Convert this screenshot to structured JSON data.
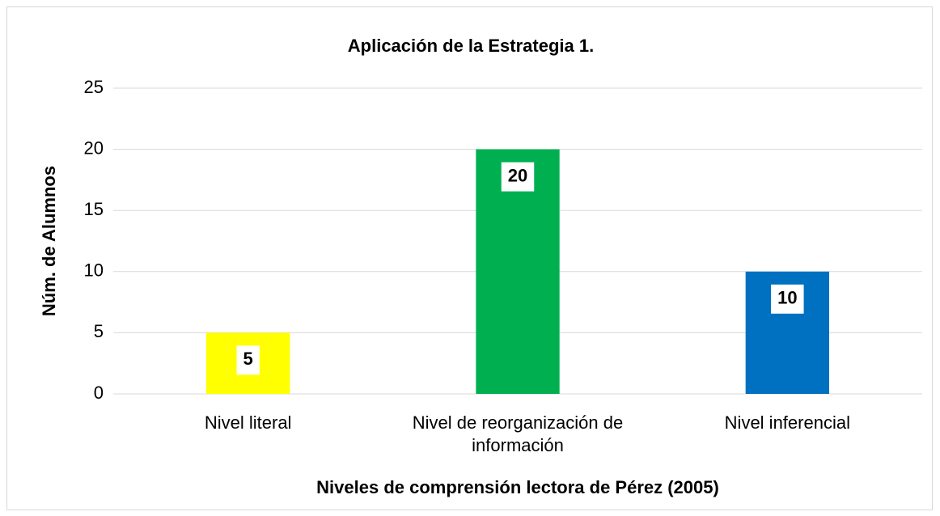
{
  "chart_data": {
    "type": "bar",
    "title": "Aplicación de la Estrategia 1.",
    "x_label": "Niveles de comprensión lectora de Pérez  (2005)",
    "y_label": "Núm. de Alumnos",
    "categories": [
      "Nivel literal",
      "Nivel de reorganización de información",
      "Nivel inferencial"
    ],
    "values": [
      5,
      20,
      10
    ],
    "colors": [
      "#ffff00",
      "#00b050",
      "#0070c0"
    ],
    "ylim": [
      0,
      25
    ],
    "yticks": [
      0,
      5,
      10,
      15,
      20,
      25
    ],
    "grid": true,
    "data_labels": true
  }
}
